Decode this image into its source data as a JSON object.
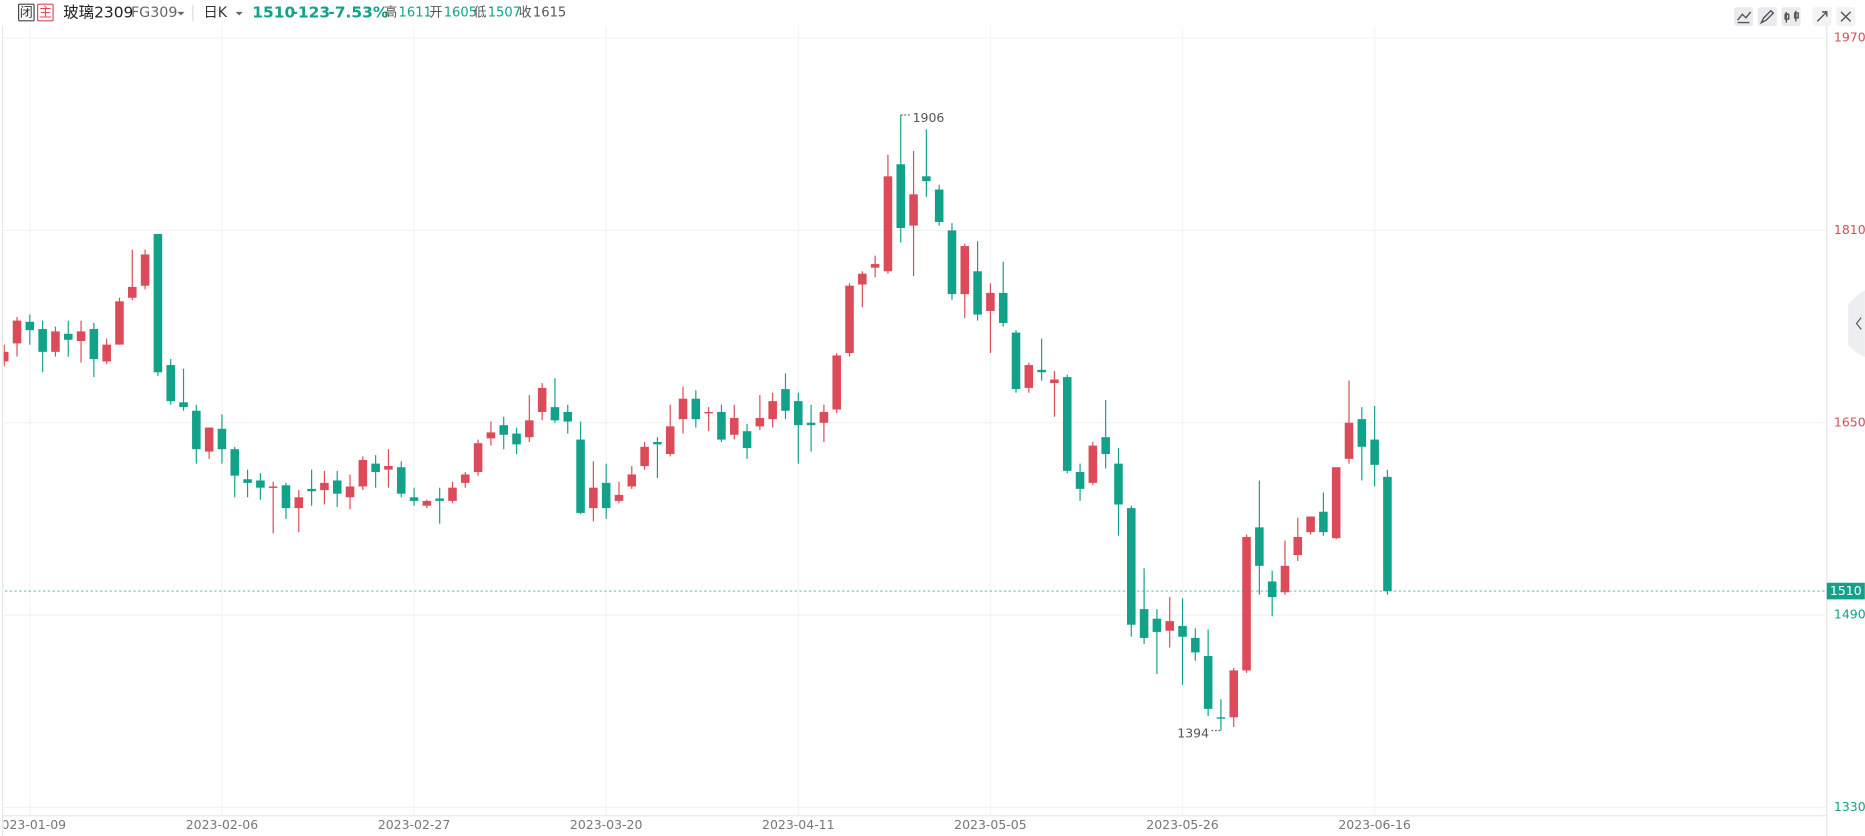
{
  "header": {
    "tags": [
      "闭",
      "主"
    ],
    "name": "玻璃2309",
    "code": "FG309",
    "period": "日K",
    "last": "1510",
    "change": "-123",
    "change_pct": "-7.53%",
    "stats": [
      {
        "label": "高",
        "value": "1611"
      },
      {
        "label": "开",
        "value": "1605"
      },
      {
        "label": "低",
        "value": "1507"
      },
      {
        "label": "收",
        "value": "1615"
      }
    ]
  },
  "chart_data": {
    "type": "candlestick",
    "up_color": "#dc4b59",
    "down_color": "#12a28a",
    "grid": true,
    "ylim": [
      1330,
      1970
    ],
    "yticks": [
      1970,
      1810,
      1650,
      1490,
      1330
    ],
    "categories": [
      null,
      null,
      "2023-01-09",
      null,
      null,
      null,
      null,
      null,
      null,
      null,
      null,
      null,
      null,
      null,
      null,
      null,
      null,
      "2023-02-06",
      null,
      null,
      null,
      null,
      null,
      null,
      null,
      null,
      null,
      null,
      null,
      null,
      null,
      null,
      "2023-02-27",
      null,
      null,
      null,
      null,
      null,
      null,
      null,
      null,
      null,
      null,
      null,
      null,
      null,
      null,
      "2023-03-20",
      null,
      null,
      null,
      null,
      null,
      null,
      null,
      null,
      null,
      null,
      null,
      null,
      null,
      null,
      "2023-04-11",
      null,
      null,
      null,
      null,
      null,
      null,
      null,
      null,
      null,
      null,
      null,
      null,
      null,
      null,
      "2023-05-05",
      null,
      null,
      null,
      null,
      null,
      null,
      null,
      null,
      null,
      null,
      null,
      null,
      null,
      null,
      "2023-05-26",
      null,
      null,
      null,
      null,
      null,
      null,
      null,
      null,
      null,
      null,
      null,
      null,
      null,
      null,
      "2023-06-16",
      null
    ],
    "open": [
      1701,
      1716,
      1734,
      1728,
      1709,
      1724,
      1718,
      1728,
      1701,
      1715,
      1754,
      1764,
      1807,
      1698,
      1667,
      1660,
      1626,
      1645,
      1628,
      1603,
      1602,
      1596,
      1598,
      1579,
      1595,
      1594,
      1602,
      1588,
      1597,
      1616,
      1611,
      1613,
      1588,
      1581,
      1587,
      1585,
      1600,
      1609,
      1637,
      1648,
      1641,
      1638,
      1659,
      1663,
      1659,
      1636,
      1579,
      1600,
      1585,
      1597,
      1614,
      1634,
      1624,
      1653,
      1670,
      1658,
      1659,
      1640,
      1643,
      1647,
      1653,
      1678,
      1668,
      1650,
      1650,
      1661,
      1708,
      1765,
      1779,
      1776,
      1865,
      1814,
      1855,
      1844,
      1810,
      1757,
      1776,
      1743,
      1758,
      1725,
      1679,
      1694,
      1683,
      1688,
      1609,
      1600,
      1638,
      1616,
      1579,
      1495,
      1487,
      1477,
      1481,
      1471,
      1456,
      1405,
      1405,
      1444,
      1563,
      1518,
      1509,
      1540,
      1559,
      1576,
      1554,
      1620,
      1653,
      1636,
      1605
    ],
    "high": [
      1715,
      1738,
      1740,
      1735,
      1730,
      1735,
      1735,
      1733,
      1720,
      1754,
      1794,
      1794,
      1807,
      1703,
      1695,
      1665,
      1646,
      1657,
      1630,
      1611,
      1608,
      1601,
      1600,
      1594,
      1611,
      1610,
      1610,
      1607,
      1622,
      1623,
      1628,
      1618,
      1596,
      1586,
      1596,
      1601,
      1609,
      1636,
      1651,
      1655,
      1646,
      1673,
      1683,
      1687,
      1665,
      1651,
      1618,
      1616,
      1601,
      1614,
      1634,
      1638,
      1665,
      1680,
      1677,
      1663,
      1665,
      1665,
      1649,
      1673,
      1675,
      1691,
      1675,
      1665,
      1665,
      1708,
      1766,
      1776,
      1789,
      1873,
      1906,
      1876,
      1894,
      1848,
      1816,
      1799,
      1801,
      1766,
      1784,
      1727,
      1700,
      1720,
      1693,
      1690,
      1616,
      1634,
      1669,
      1629,
      1581,
      1529,
      1495,
      1505,
      1504,
      1479,
      1478,
      1420,
      1446,
      1557,
      1602,
      1527,
      1552,
      1571,
      1572,
      1592,
      1613,
      1685,
      1663,
      1664,
      1611
    ],
    "low": [
      1697,
      1705,
      1715,
      1692,
      1705,
      1705,
      1700,
      1688,
      1699,
      1715,
      1752,
      1761,
      1689,
      1665,
      1660,
      1616,
      1620,
      1616,
      1588,
      1588,
      1586,
      1558,
      1570,
      1559,
      1581,
      1582,
      1580,
      1578,
      1594,
      1596,
      1596,
      1588,
      1581,
      1579,
      1566,
      1583,
      1596,
      1606,
      1631,
      1628,
      1624,
      1634,
      1652,
      1650,
      1641,
      1574,
      1568,
      1570,
      1583,
      1595,
      1611,
      1604,
      1622,
      1641,
      1646,
      1643,
      1634,
      1636,
      1620,
      1644,
      1646,
      1653,
      1616,
      1626,
      1634,
      1658,
      1705,
      1746,
      1771,
      1774,
      1800,
      1772,
      1838,
      1814,
      1752,
      1737,
      1735,
      1708,
      1730,
      1675,
      1675,
      1685,
      1655,
      1608,
      1585,
      1598,
      1612,
      1556,
      1472,
      1466,
      1441,
      1463,
      1432,
      1452,
      1406,
      1394,
      1397,
      1442,
      1507,
      1489,
      1507,
      1535,
      1557,
      1556,
      1553,
      1616,
      1602,
      1597,
      1507
    ],
    "close": [
      1709,
      1735,
      1727,
      1709,
      1726,
      1719,
      1726,
      1703,
      1715,
      1751,
      1763,
      1790,
      1692,
      1668,
      1663,
      1628,
      1646,
      1628,
      1606,
      1600,
      1596,
      1597,
      1579,
      1588,
      1593,
      1600,
      1591,
      1597,
      1619,
      1609,
      1614,
      1591,
      1585,
      1585,
      1585,
      1596,
      1607,
      1633,
      1642,
      1640,
      1632,
      1652,
      1679,
      1652,
      1651,
      1575,
      1596,
      1579,
      1590,
      1607,
      1630,
      1632,
      1647,
      1670,
      1653,
      1659,
      1636,
      1654,
      1629,
      1654,
      1668,
      1660,
      1648,
      1648,
      1659,
      1706,
      1764,
      1774,
      1782,
      1855,
      1812,
      1840,
      1851,
      1817,
      1757,
      1797,
      1740,
      1758,
      1733,
      1678,
      1698,
      1692,
      1686,
      1610,
      1595,
      1631,
      1624,
      1582,
      1482,
      1471,
      1476,
      1485,
      1472,
      1459,
      1412,
      1404,
      1444,
      1555,
      1531,
      1505,
      1531,
      1555,
      1572,
      1559,
      1613,
      1650,
      1630,
      1615,
      1510
    ]
  }
}
